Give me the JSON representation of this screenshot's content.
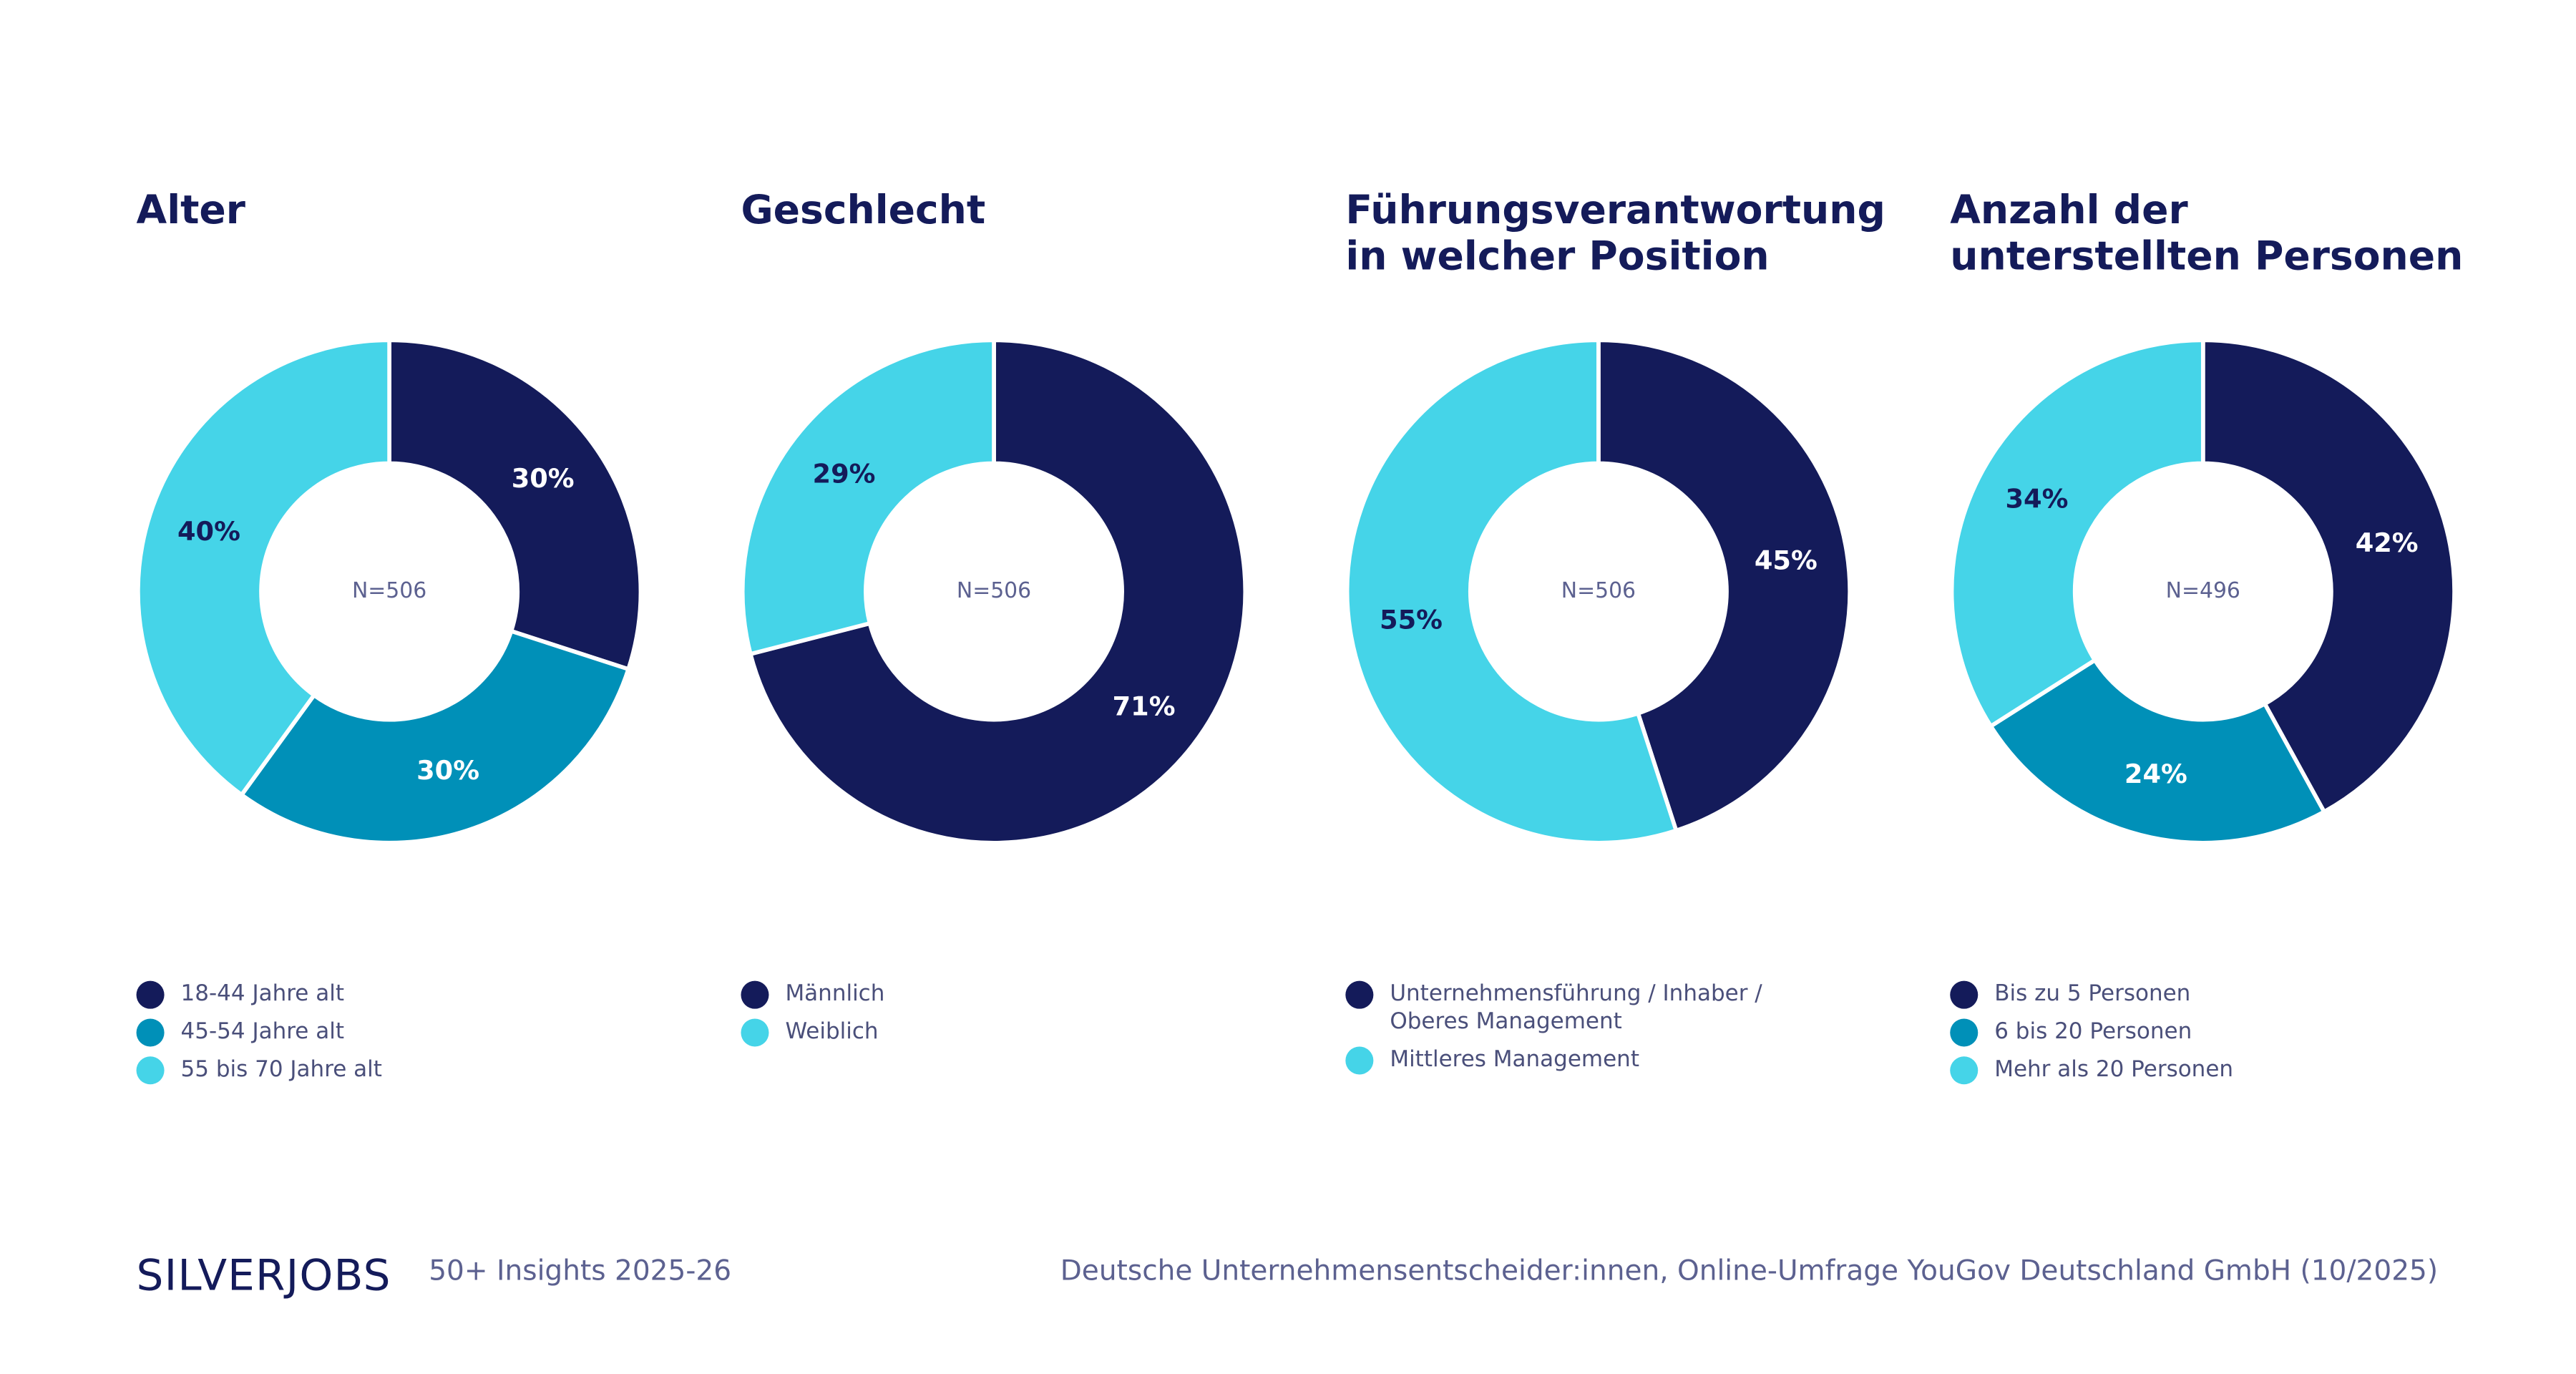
{
  "chart_data": [
    {
      "type": "pie",
      "title": "Alter",
      "annotation": "N=506",
      "categories": [
        "18-44 Jahre alt",
        "45-54 Jahre alt",
        "55 bis 70 Jahre alt"
      ],
      "values": [
        30,
        30,
        40
      ],
      "value_labels": [
        "30%",
        "30%",
        "40%"
      ],
      "colors": [
        "#141b5a",
        "#0090b8",
        "#45d4e8"
      ]
    },
    {
      "type": "pie",
      "title": "Geschlecht",
      "annotation": "N=506",
      "categories": [
        "Männlich",
        "Weiblich"
      ],
      "values": [
        71,
        29
      ],
      "value_labels": [
        "71%",
        "29%"
      ],
      "colors": [
        "#141b5a",
        "#45d4e8"
      ]
    },
    {
      "type": "pie",
      "title": "Führungsverantwortung in welcher Position",
      "annotation": "N=506",
      "categories": [
        "Unternehmensführung / Inhaber / Oberes Management",
        "Mittleres Management"
      ],
      "values": [
        45,
        55
      ],
      "value_labels": [
        "45%",
        "55%"
      ],
      "colors": [
        "#141b5a",
        "#45d4e8"
      ]
    },
    {
      "type": "pie",
      "title": "Anzahl der unterstellten Personen",
      "annotation": "N=496",
      "categories": [
        "Bis zu 5 Personen",
        "6 bis 20 Personen",
        "Mehr als 20 Personen"
      ],
      "values": [
        42,
        24,
        34
      ],
      "value_labels": [
        "42%",
        "24%",
        "34%"
      ],
      "colors": [
        "#141b5a",
        "#0090b8",
        "#45d4e8"
      ]
    }
  ],
  "footer": {
    "logo": "SILVERJOBS",
    "edition": "50+ Insights 2025-26",
    "source": "Deutsche Unternehmensentscheider:innen, Online-Umfrage YouGov Deutschland GmbH (10/2025)"
  }
}
